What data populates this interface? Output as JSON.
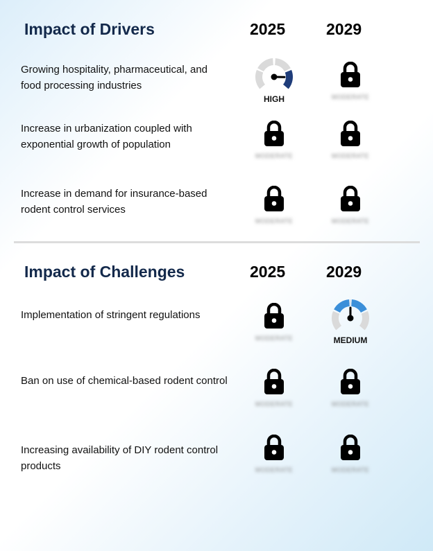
{
  "drivers": {
    "title": "Impact of Drivers",
    "year1": "2025",
    "year2": "2029",
    "rows": [
      {
        "label": "Growing hospitality, pharmaceutical, and food processing industries",
        "cell1": {
          "type": "gauge",
          "level": "HIGH",
          "value": 0.85,
          "color": "#1f3d7a"
        },
        "cell2": {
          "type": "lock",
          "hidden_text": "MODERATE"
        }
      },
      {
        "label": "Increase in urbanization coupled with exponential growth of population",
        "cell1": {
          "type": "lock",
          "hidden_text": "MODERATE"
        },
        "cell2": {
          "type": "lock",
          "hidden_text": "MODERATE"
        }
      },
      {
        "label": "Increase in demand for insurance-based rodent control services",
        "cell1": {
          "type": "lock",
          "hidden_text": "MODERATE"
        },
        "cell2": {
          "type": "lock",
          "hidden_text": "MODERATE"
        }
      }
    ]
  },
  "challenges": {
    "title": "Impact of Challenges",
    "year1": "2025",
    "year2": "2029",
    "rows": [
      {
        "label": "Implementation of stringent regulations",
        "cell1": {
          "type": "lock",
          "hidden_text": "MODERATE"
        },
        "cell2": {
          "type": "gauge",
          "level": "MEDIUM",
          "value": 0.5,
          "color": "#3b8fd9"
        }
      },
      {
        "label": "Ban on use of chemical-based rodent control",
        "cell1": {
          "type": "lock",
          "hidden_text": "MODERATE"
        },
        "cell2": {
          "type": "lock",
          "hidden_text": "MODERATE"
        }
      },
      {
        "label": "Increasing availability of DIY rodent control products",
        "cell1": {
          "type": "lock",
          "hidden_text": "MODERATE"
        },
        "cell2": {
          "type": "lock",
          "hidden_text": "MODERATE"
        }
      }
    ]
  },
  "colors": {
    "title": "#13294b",
    "gauge_track": "#dadada",
    "needle": "#000000"
  },
  "icons": {
    "locked": "lock-icon",
    "gauge": "gauge-icon"
  }
}
